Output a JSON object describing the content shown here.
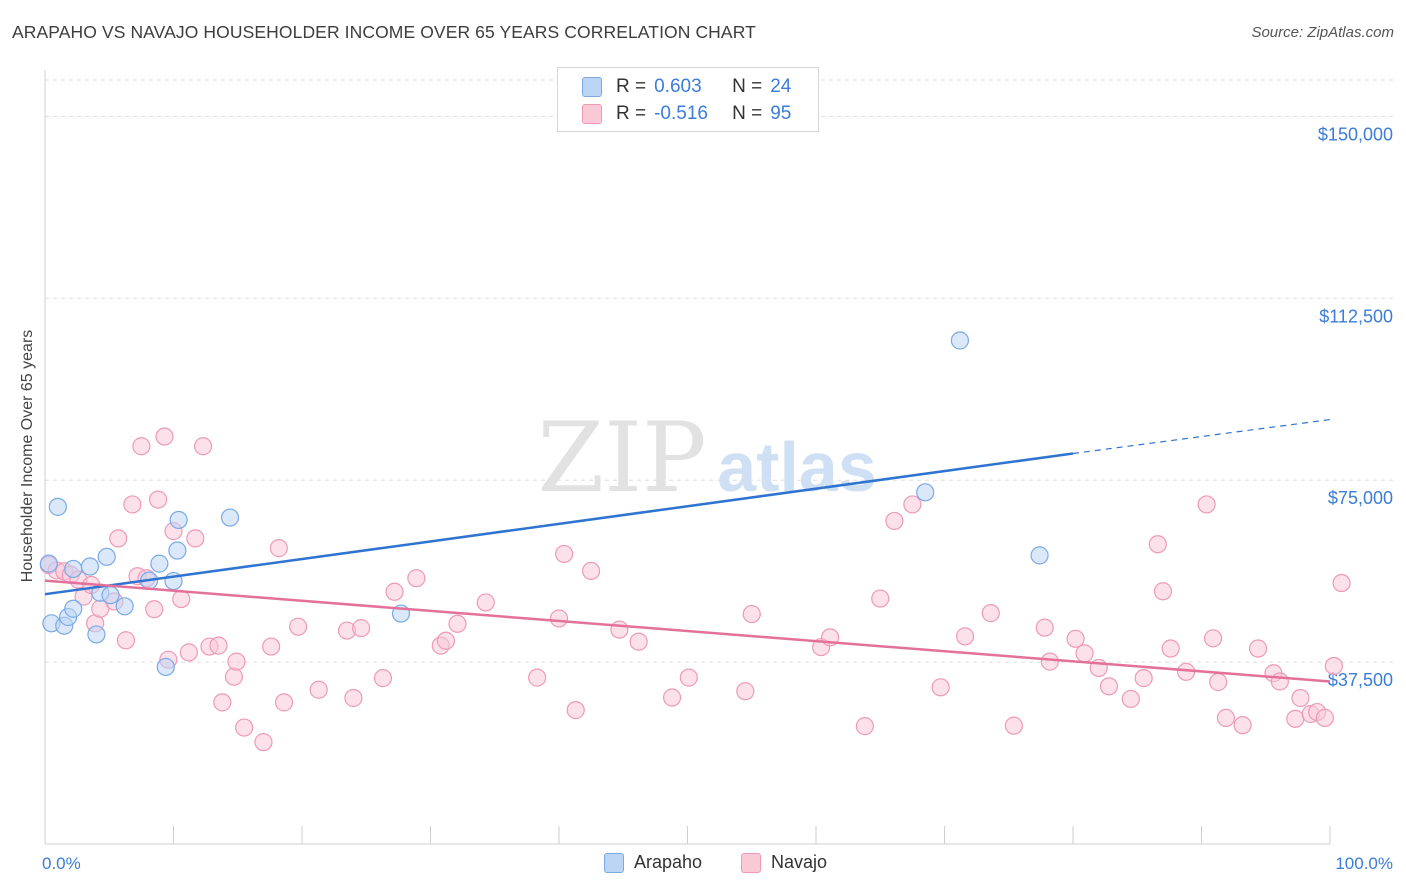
{
  "header": {
    "title": "ARAPAHO VS NAVAJO HOUSEHOLDER INCOME OVER 65 YEARS CORRELATION CHART",
    "source": "Source: ZipAtlas.com"
  },
  "watermark": {
    "zip": "ZIP",
    "atlas": "atlas"
  },
  "legend": {
    "series": [
      {
        "name": "Arapaho",
        "r_label": "R =",
        "r_value": "0.603",
        "n_label": "N =",
        "n_value": "24"
      },
      {
        "name": "Navajo",
        "r_label": "R =",
        "r_value": "-0.516",
        "n_label": "N =",
        "n_value": "95"
      }
    ]
  },
  "colors": {
    "arapaho_fill": "#bcd5f5",
    "arapaho_stroke": "#7aaae6",
    "arapaho_line": "#2f74d0",
    "navajo_fill": "#f9c9d8",
    "navajo_stroke": "#ee9ab6",
    "navajo_line": "#e3719a",
    "tick_label": "#3b7dd8",
    "grid": "#dddddd"
  },
  "chart_data": {
    "type": "scatter",
    "title": "ARAPAHO VS NAVAJO HOUSEHOLDER INCOME OVER 65 YEARS CORRELATION CHART",
    "xlabel": "",
    "ylabel": "Householder Income Over 65 years",
    "xlim": [
      0,
      100
    ],
    "ylim": [
      0,
      157500
    ],
    "x_tick_labels": [
      "0.0%",
      "100.0%"
    ],
    "y_ticks": [
      37500,
      75000,
      112500,
      150000
    ],
    "y_tick_labels": [
      "$37,500",
      "$75,000",
      "$112,500",
      "$150,000"
    ],
    "grid": true,
    "series": [
      {
        "name": "Arapaho",
        "points": [
          [
            0.3,
            57800
          ],
          [
            0.5,
            45500
          ],
          [
            1,
            69500
          ],
          [
            1.5,
            45000
          ],
          [
            1.8,
            46800
          ],
          [
            2.2,
            48500
          ],
          [
            2.2,
            56700
          ],
          [
            3.5,
            57200
          ],
          [
            4.0,
            43200
          ],
          [
            4.3,
            51800
          ],
          [
            4.8,
            59200
          ],
          [
            5.1,
            51300
          ],
          [
            6.2,
            49000
          ],
          [
            8.1,
            54300
          ],
          [
            8.9,
            57800
          ],
          [
            9.4,
            36500
          ],
          [
            10.0,
            54200
          ],
          [
            10.3,
            60500
          ],
          [
            10.4,
            66800
          ],
          [
            14.4,
            67300
          ],
          [
            27.7,
            47500
          ],
          [
            68.5,
            72500
          ],
          [
            71.2,
            103800
          ],
          [
            77.4,
            59500
          ]
        ],
        "trend": {
          "x0": 0,
          "y0": 51500,
          "x1": 80,
          "y1": 80500,
          "dash_to_x": 100,
          "dash_to_y": 87500
        }
      },
      {
        "name": "Navajo",
        "points": [
          [
            0.3,
            57500
          ],
          [
            0.9,
            56400
          ],
          [
            1.5,
            56200
          ],
          [
            2.0,
            55500
          ],
          [
            2.6,
            54500
          ],
          [
            3.0,
            51000
          ],
          [
            3.6,
            53400
          ],
          [
            3.9,
            45500
          ],
          [
            4.3,
            48500
          ],
          [
            5.4,
            50000
          ],
          [
            5.7,
            63000
          ],
          [
            6.3,
            42000
          ],
          [
            6.8,
            70000
          ],
          [
            7.2,
            55200
          ],
          [
            7.5,
            82000
          ],
          [
            7.9,
            54800
          ],
          [
            8.5,
            48400
          ],
          [
            8.8,
            71000
          ],
          [
            9.3,
            84000
          ],
          [
            9.6,
            38000
          ],
          [
            10.0,
            64500
          ],
          [
            10.6,
            50500
          ],
          [
            11.2,
            39500
          ],
          [
            11.7,
            63000
          ],
          [
            12.3,
            82000
          ],
          [
            12.8,
            40700
          ],
          [
            13.5,
            40900
          ],
          [
            13.8,
            29200
          ],
          [
            14.7,
            34500
          ],
          [
            14.9,
            37600
          ],
          [
            15.5,
            24000
          ],
          [
            17.0,
            21000
          ],
          [
            17.6,
            40700
          ],
          [
            18.2,
            61000
          ],
          [
            18.6,
            29200
          ],
          [
            19.7,
            44800
          ],
          [
            21.3,
            31800
          ],
          [
            23.5,
            44000
          ],
          [
            24.0,
            30100
          ],
          [
            24.6,
            44500
          ],
          [
            26.3,
            34200
          ],
          [
            27.2,
            52000
          ],
          [
            28.9,
            54800
          ],
          [
            30.8,
            40900
          ],
          [
            31.2,
            41900
          ],
          [
            32.1,
            45400
          ],
          [
            34.3,
            49800
          ],
          [
            38.3,
            34300
          ],
          [
            40.0,
            46500
          ],
          [
            40.4,
            59800
          ],
          [
            41.3,
            27600
          ],
          [
            42.5,
            56300
          ],
          [
            44.7,
            44200
          ],
          [
            46.2,
            41700
          ],
          [
            48.8,
            30200
          ],
          [
            50.1,
            34300
          ],
          [
            54.5,
            31500
          ],
          [
            55.0,
            47400
          ],
          [
            60.4,
            40600
          ],
          [
            61.1,
            42600
          ],
          [
            63.8,
            24300
          ],
          [
            65.0,
            50600
          ],
          [
            66.1,
            66600
          ],
          [
            67.5,
            70000
          ],
          [
            69.7,
            32300
          ],
          [
            71.6,
            42800
          ],
          [
            73.6,
            47600
          ],
          [
            75.4,
            24400
          ],
          [
            77.8,
            44600
          ],
          [
            78.2,
            37600
          ],
          [
            80.2,
            42300
          ],
          [
            80.9,
            39300
          ],
          [
            82.0,
            36300
          ],
          [
            82.8,
            32500
          ],
          [
            84.5,
            29900
          ],
          [
            85.5,
            34200
          ],
          [
            86.6,
            61800
          ],
          [
            87.0,
            52100
          ],
          [
            87.6,
            40300
          ],
          [
            88.8,
            35500
          ],
          [
            90.4,
            70000
          ],
          [
            90.9,
            42400
          ],
          [
            91.3,
            33400
          ],
          [
            91.9,
            26000
          ],
          [
            93.2,
            24500
          ],
          [
            94.4,
            40300
          ],
          [
            95.6,
            35200
          ],
          [
            96.1,
            33500
          ],
          [
            97.3,
            25800
          ],
          [
            97.7,
            30100
          ],
          [
            98.5,
            26800
          ],
          [
            99.0,
            27200
          ],
          [
            99.6,
            26000
          ],
          [
            100.3,
            36700
          ],
          [
            100.9,
            53800
          ]
        ],
        "trend": {
          "x0": 0,
          "y0": 54300,
          "x1": 100,
          "y1": 33500
        }
      }
    ]
  }
}
